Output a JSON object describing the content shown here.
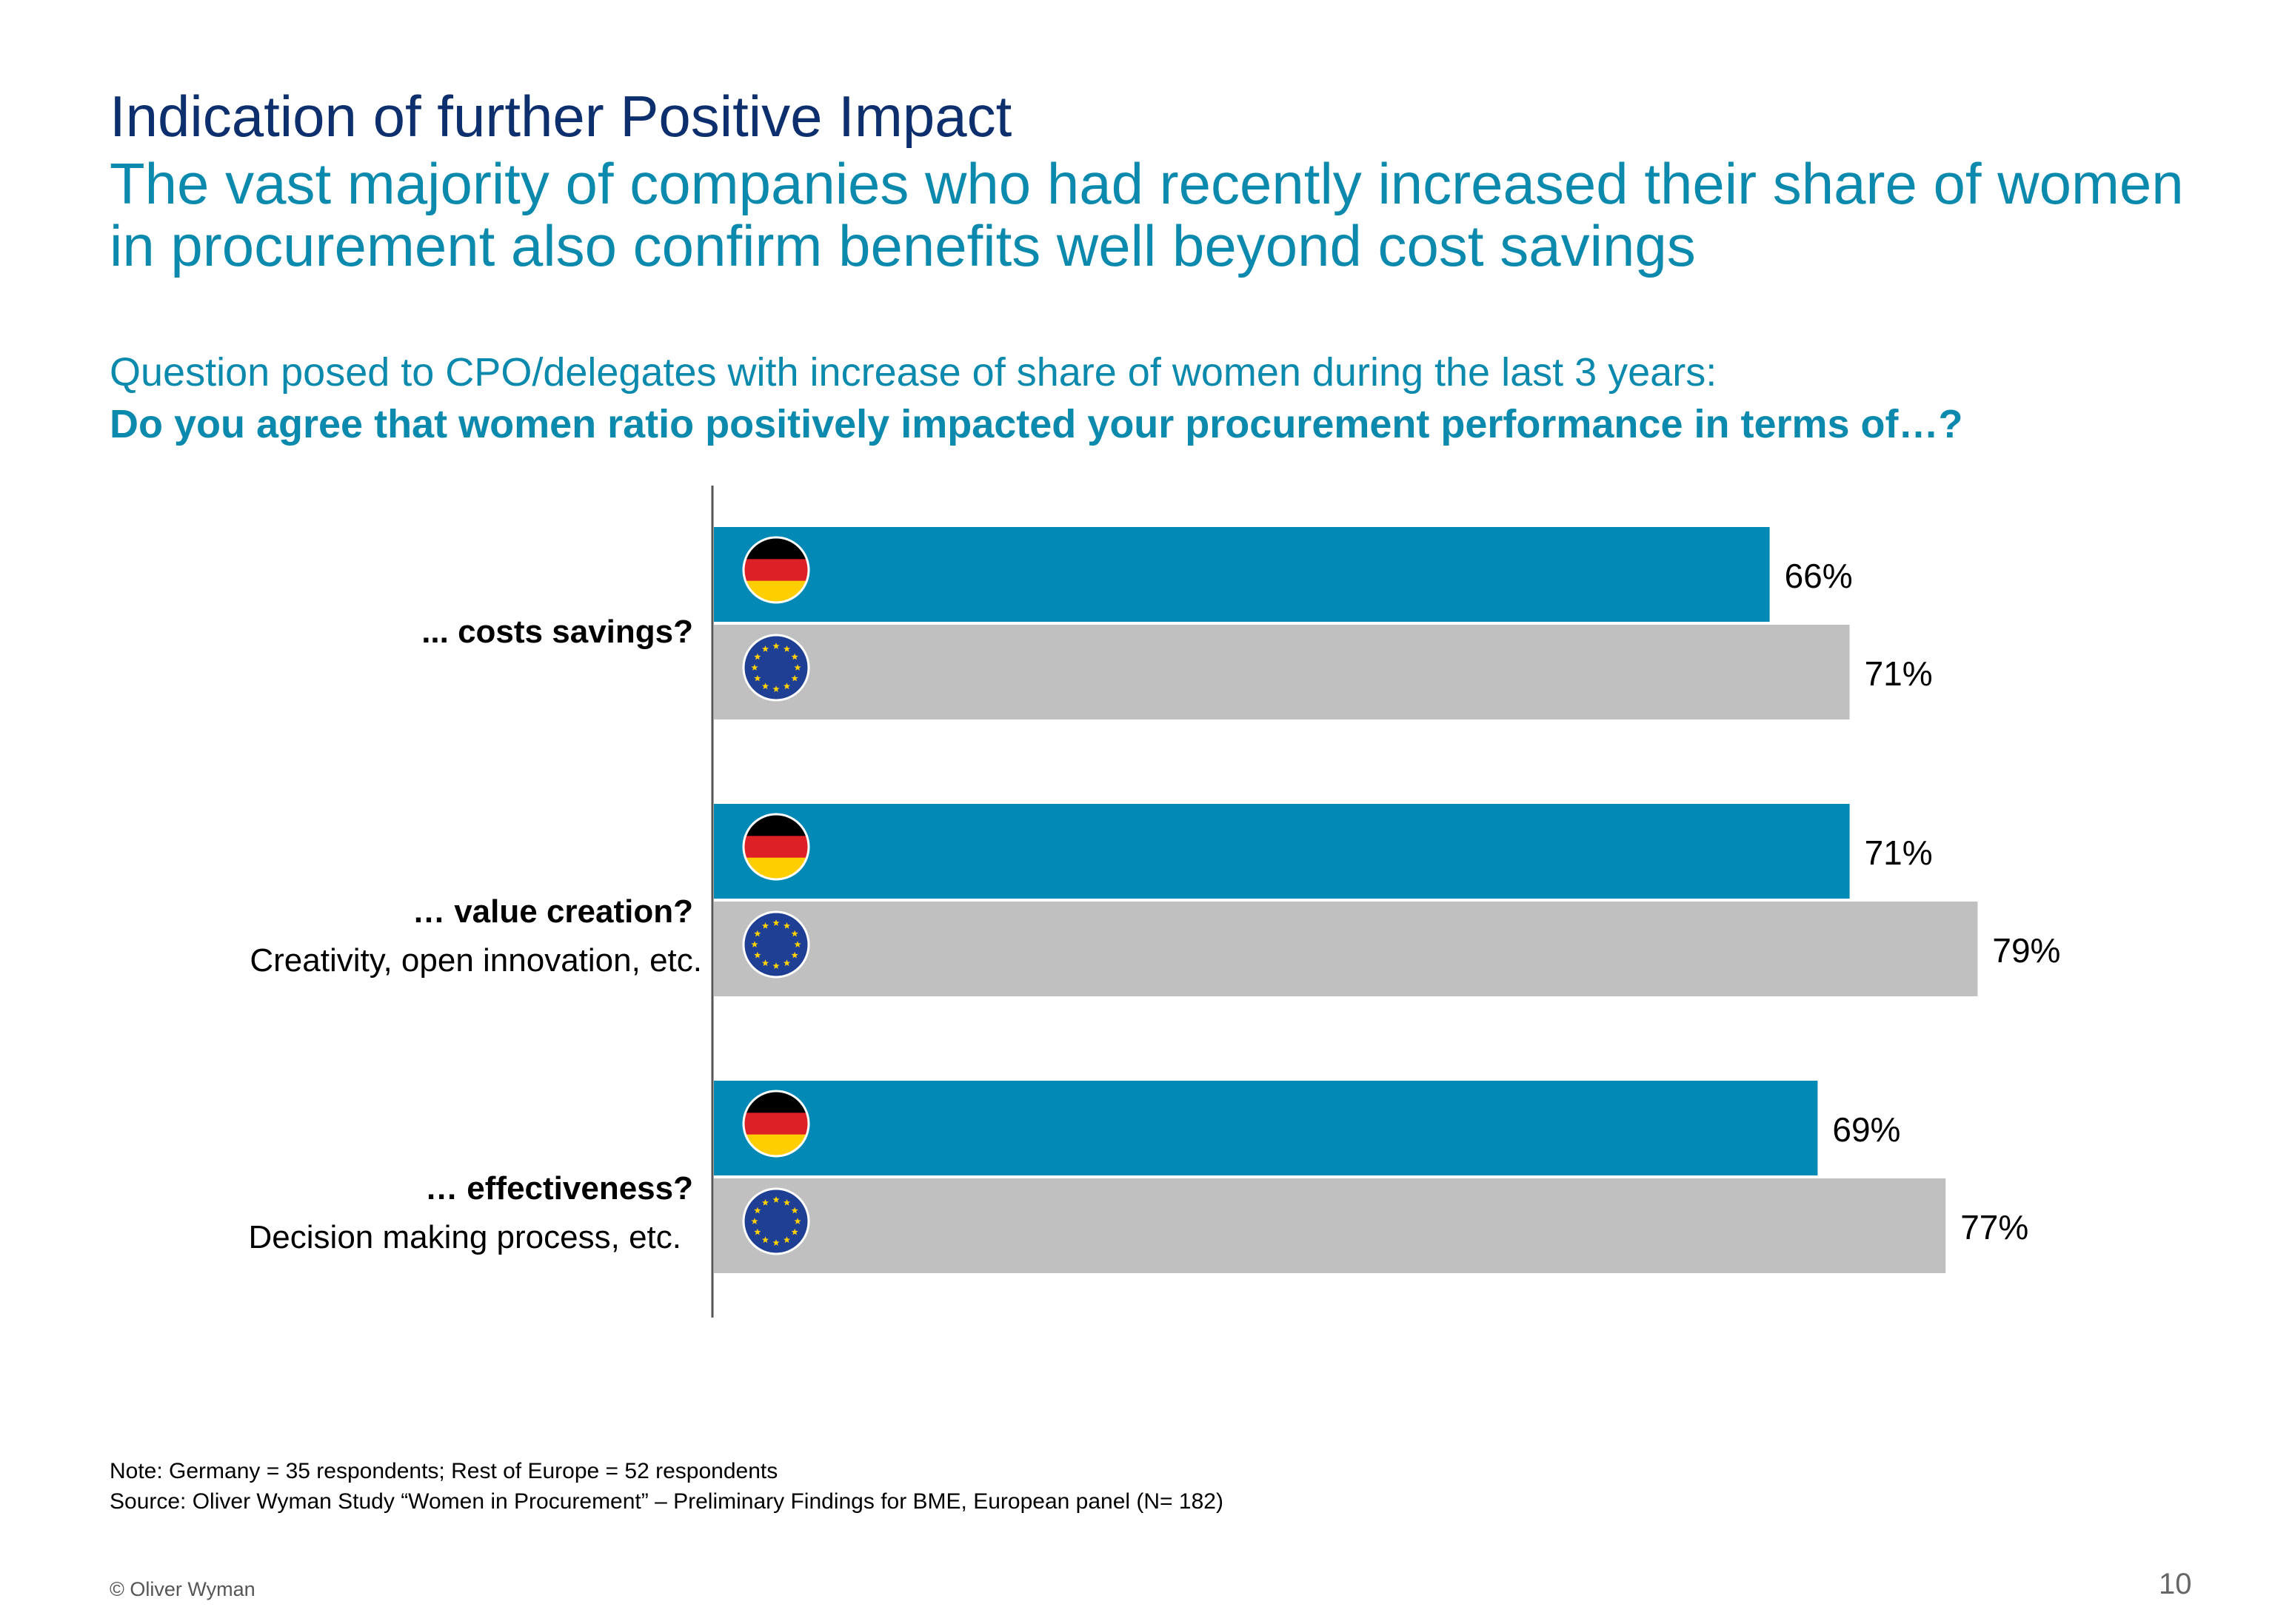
{
  "header": {
    "title": "Indication of further Positive Impact",
    "subtitle": "The vast majority of companies who had recently increased their share of women in procurement also confirm benefits well beyond cost savings"
  },
  "question": {
    "line1": "Question posed to CPO/delegates with increase of share of women during the last 3 years:",
    "line2": "Do you agree that women ratio positively impacted your procurement performance in terms of…?"
  },
  "chart_data": {
    "type": "bar",
    "orientation": "horizontal",
    "categories": [
      {
        "label": "... costs savings?",
        "sublabel": ""
      },
      {
        "label": "… value creation?",
        "sublabel": "Creativity, open innovation, etc."
      },
      {
        "label": "… effectiveness?",
        "sublabel": "Decision making process, etc."
      }
    ],
    "series": [
      {
        "flag": "germany-flag-icon",
        "color": "#0389b5",
        "values": [
          66,
          71,
          69
        ],
        "labels": [
          "66%",
          "71%",
          "69%"
        ]
      },
      {
        "flag": "eu-flag-icon",
        "color": "#c0c0c0",
        "values": [
          71,
          79,
          77
        ],
        "labels": [
          "71%",
          "79%",
          "77%"
        ]
      }
    ],
    "value_suffix": "%",
    "xlim": [
      0,
      100
    ],
    "grid": false
  },
  "footer": {
    "note": "Note: Germany = 35 respondents; Rest of Europe = 52 respondents",
    "source": "Source: Oliver Wyman Study “Women in Procurement” – Preliminary Findings for BME, European panel (N= 182)",
    "copyright": "© Oliver Wyman",
    "page": "10"
  }
}
